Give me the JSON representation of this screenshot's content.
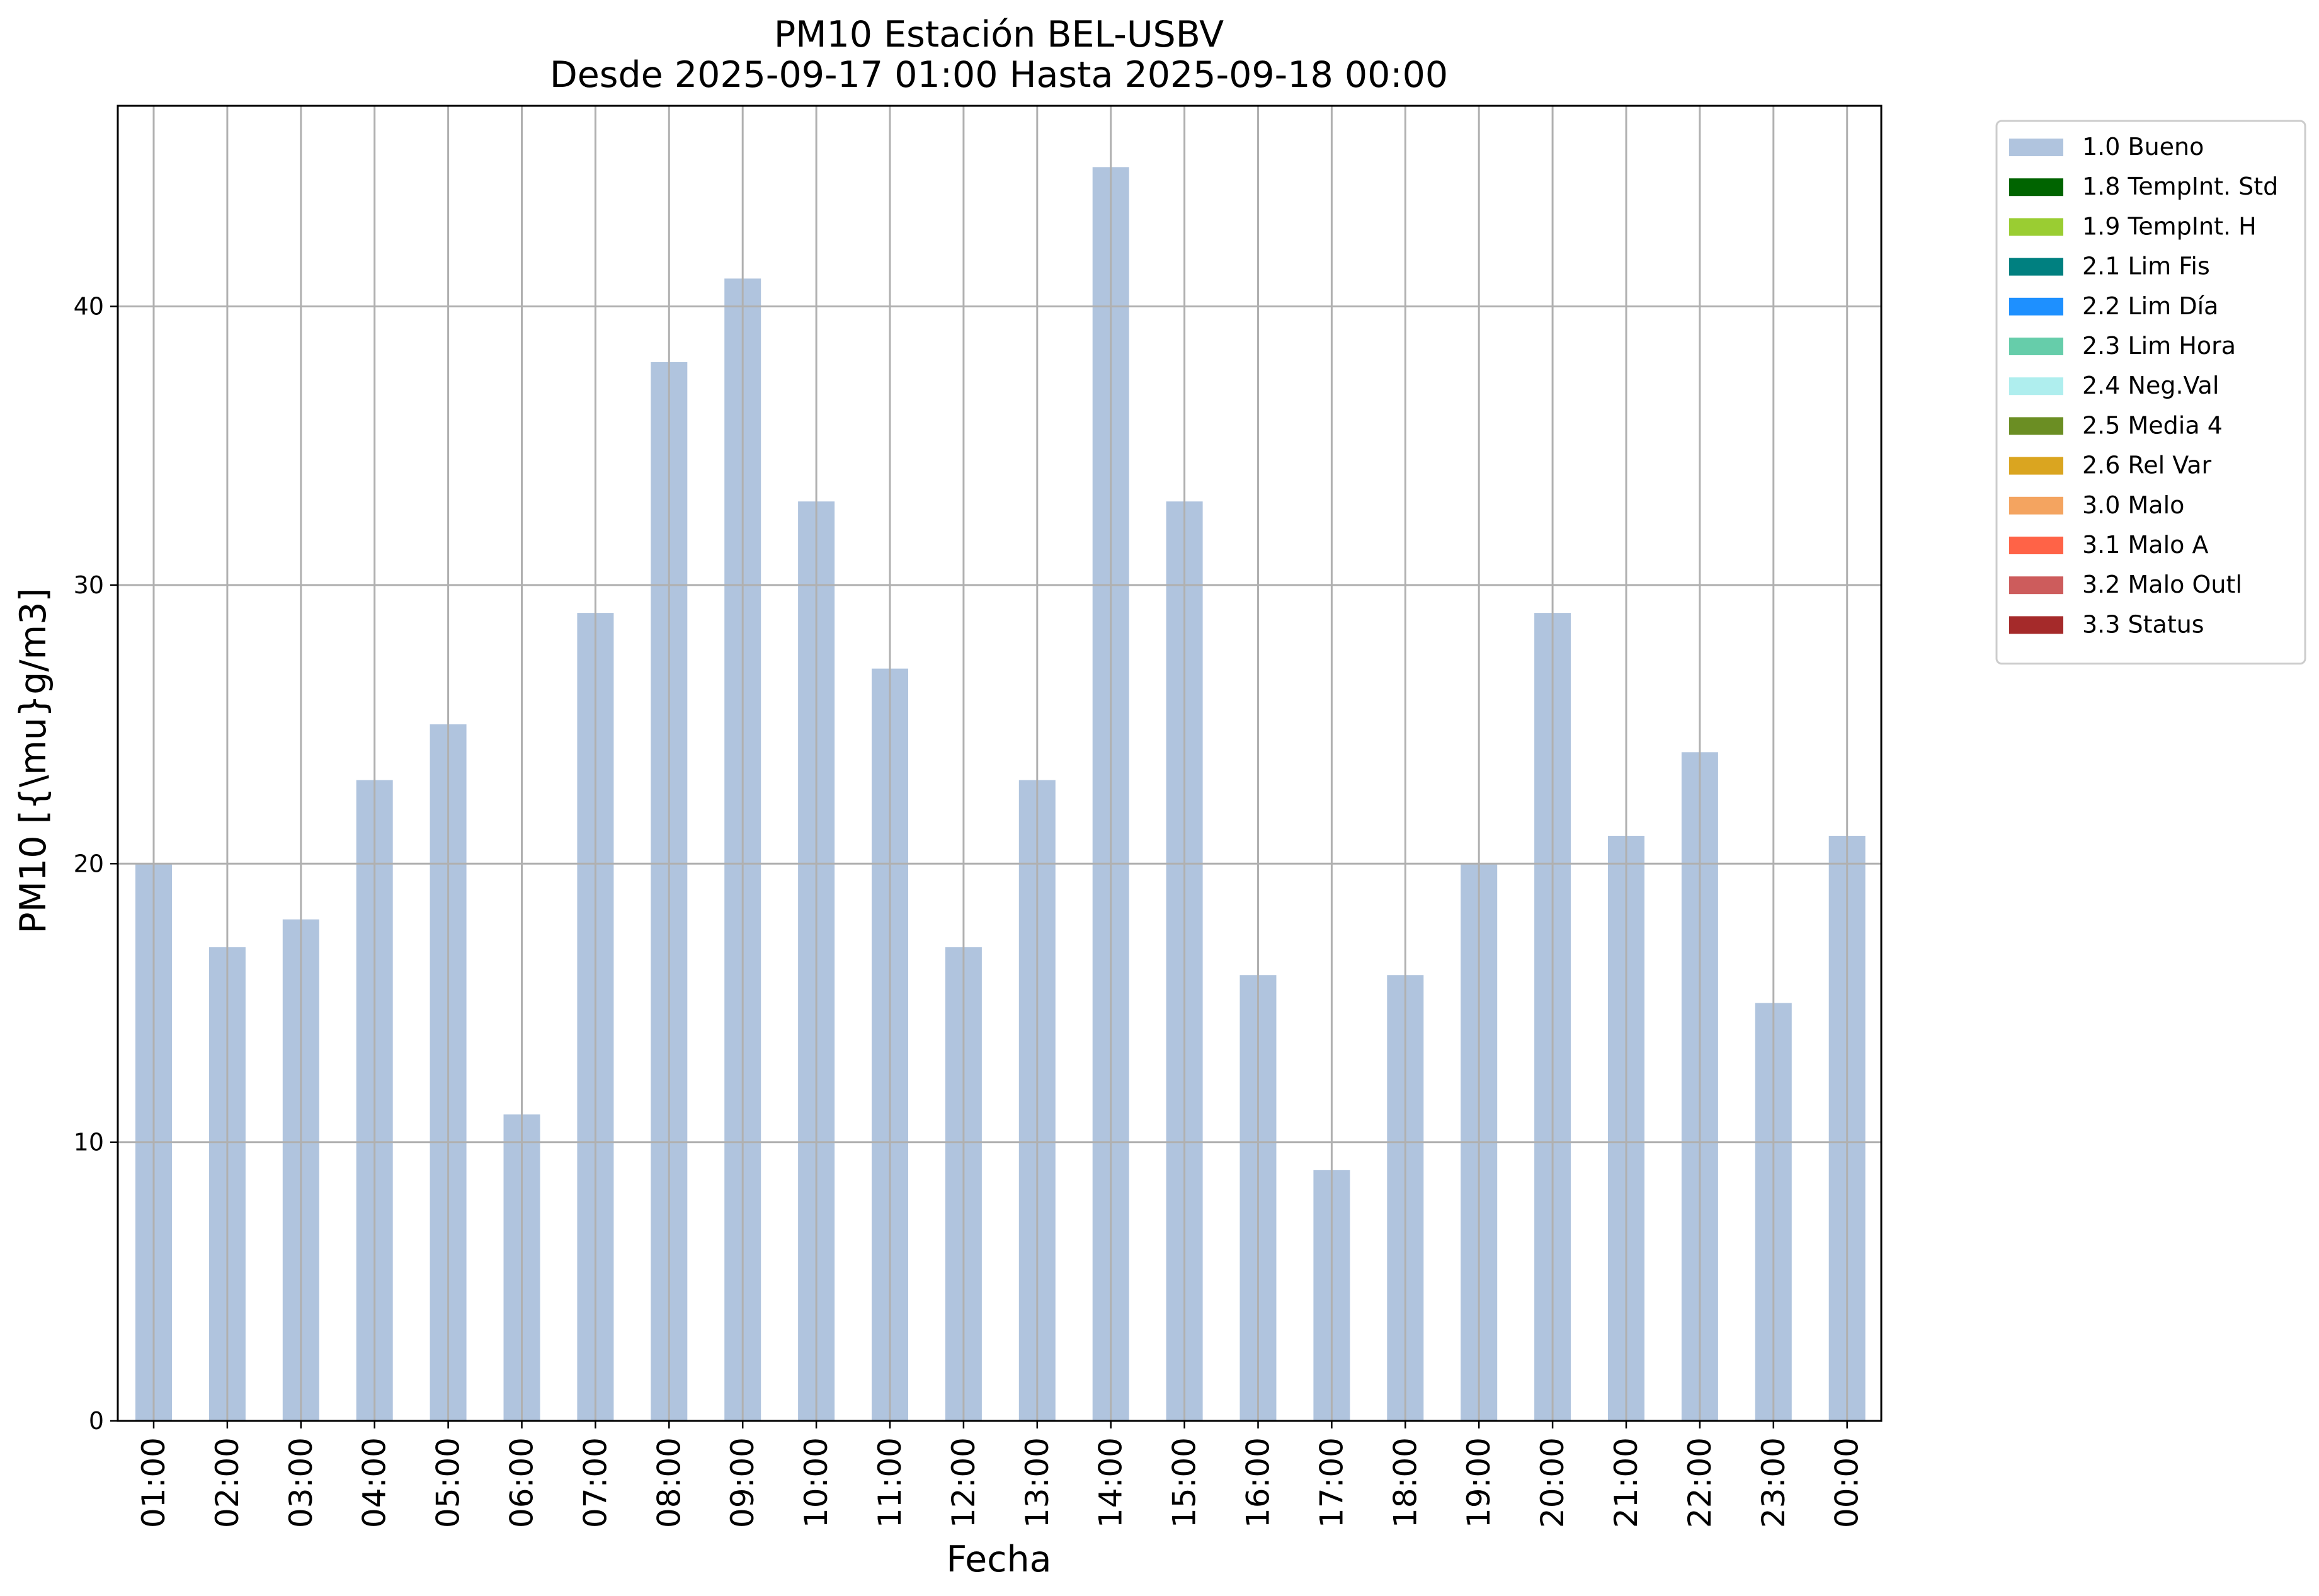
{
  "chart_data": {
    "type": "bar",
    "title": "PM10 Estación BEL-USBV",
    "subtitle": "Desde 2025-09-17 01:00 Hasta 2025-09-18 00:00",
    "xlabel": "Fecha",
    "ylabel": "PM10 [{\\mu}g/m3]",
    "ylim": [
      0,
      47.2
    ],
    "yticks": [
      0,
      10,
      20,
      30,
      40
    ],
    "grid": true,
    "legend_position": "outside-right",
    "categories": [
      "01:00",
      "02:00",
      "03:00",
      "04:00",
      "05:00",
      "06:00",
      "07:00",
      "08:00",
      "09:00",
      "10:00",
      "11:00",
      "12:00",
      "13:00",
      "14:00",
      "15:00",
      "16:00",
      "17:00",
      "18:00",
      "19:00",
      "20:00",
      "21:00",
      "22:00",
      "23:00",
      "00:00"
    ],
    "series": [
      {
        "name": "1.0 Bueno",
        "color": "#b0c4de",
        "values": [
          20,
          17,
          18,
          23,
          25,
          11,
          29,
          38,
          41,
          33,
          27,
          17,
          23,
          45,
          33,
          16,
          9,
          16,
          20,
          29,
          21,
          24,
          15,
          21
        ]
      }
    ],
    "legend": [
      {
        "label": "1.0 Bueno",
        "color": "#b0c4de"
      },
      {
        "label": "1.8 TempInt. Std",
        "color": "#006400"
      },
      {
        "label": "1.9 TempInt. H",
        "color": "#9acd32"
      },
      {
        "label": "2.1 Lim Fis",
        "color": "#008080"
      },
      {
        "label": "2.2 Lim Día",
        "color": "#1e90ff"
      },
      {
        "label": "2.3 Lim Hora",
        "color": "#66cdaa"
      },
      {
        "label": "2.4 Neg.Val",
        "color": "#afeeee"
      },
      {
        "label": "2.5 Media 4",
        "color": "#6b8e23"
      },
      {
        "label": "2.6 Rel Var",
        "color": "#daa520"
      },
      {
        "label": "3.0 Malo",
        "color": "#f4a460"
      },
      {
        "label": "3.1 Malo A",
        "color": "#ff6347"
      },
      {
        "label": "3.2 Malo Outl",
        "color": "#cd5c5c"
      },
      {
        "label": "3.3 Status",
        "color": "#a52a2a"
      }
    ]
  }
}
